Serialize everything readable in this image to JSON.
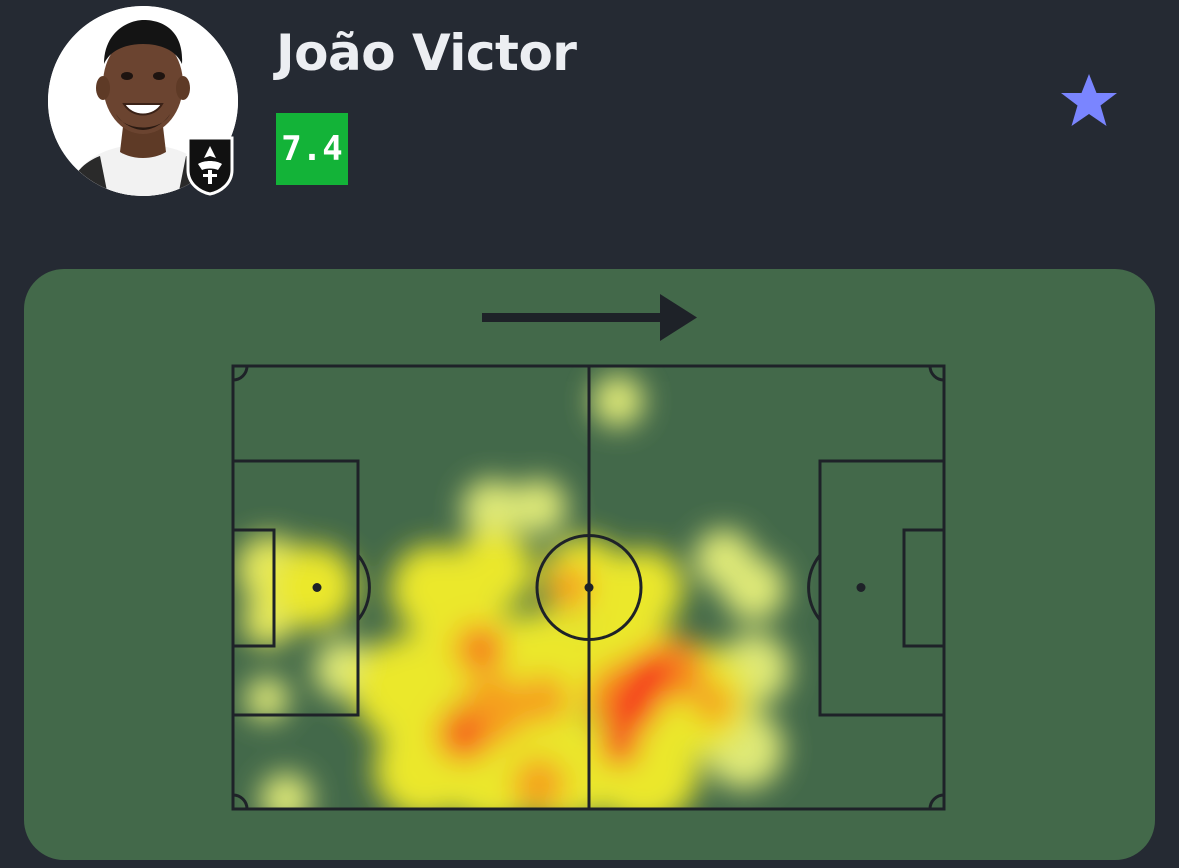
{
  "player": {
    "name": "João Victor",
    "rating": "7.4",
    "rating_color": "#13b338"
  },
  "favorite": {
    "icon": "star-icon",
    "color": "#7a85ff"
  },
  "heatmap": {
    "pitch_color": "#43694a",
    "attack_direction": "right",
    "icons": [
      "arrow-right-icon"
    ]
  }
}
